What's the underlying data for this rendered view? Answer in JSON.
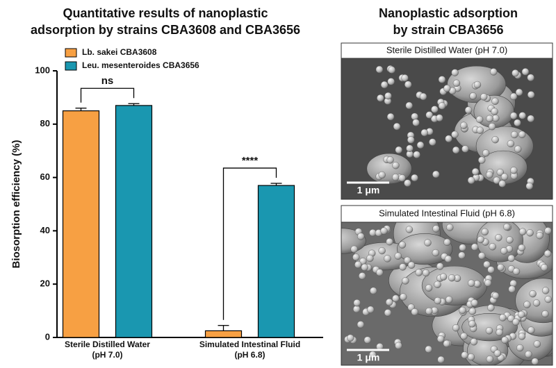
{
  "chart_data": {
    "type": "bar",
    "title": [
      "Quantitative results of nanoplastic",
      "adsorption by strains CBA3608 and CBA3656"
    ],
    "y_label": "Biosorption efficiency (%)",
    "categories": [
      [
        "Sterile Distilled Water",
        "(pH 7.0)"
      ],
      [
        "Simulated Intestinal Fluid",
        "(pH 6.8)"
      ]
    ],
    "series": [
      {
        "name": "Lb. sakei CBA3608",
        "color": "#f7a043",
        "values": [
          85,
          2.5
        ],
        "errors": [
          1,
          2
        ]
      },
      {
        "name": "Leu. mesenteroides CBA3656",
        "color": "#1a97b0",
        "values": [
          87,
          57
        ],
        "errors": [
          0.7,
          0.8
        ]
      }
    ],
    "annotations": [
      "ns",
      "****"
    ],
    "ylim": [
      0,
      100
    ],
    "yticks": [
      0,
      20,
      40,
      60,
      80,
      100
    ],
    "grid": false
  },
  "panel": {
    "title": [
      "Nanoplastic adsorption",
      "by strain CBA3656"
    ],
    "images": [
      {
        "caption": "Sterile Distilled Water (pH 7.0)",
        "scale": "1 μm"
      },
      {
        "caption": "Simulated Intestinal Fluid (pH 6.8)",
        "scale": "1 μm"
      }
    ]
  }
}
